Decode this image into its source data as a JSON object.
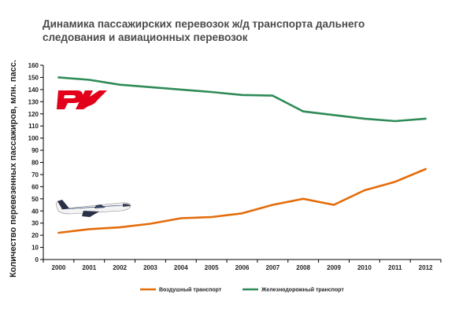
{
  "chart_data": {
    "type": "line",
    "title": "Динамика пассажирских перевозок ж/д транспорта дальнего следования и авиационных перевозок",
    "xlabel": "",
    "ylabel": "Количество перевезенных пассажиров, млн. пасс.",
    "categories": [
      "2000",
      "2001",
      "2002",
      "2003",
      "2004",
      "2005",
      "2006",
      "2007",
      "2008",
      "2009",
      "2010",
      "2011",
      "2012"
    ],
    "ylim": [
      0,
      160
    ],
    "yticks": [
      0,
      10,
      20,
      30,
      40,
      50,
      60,
      70,
      80,
      90,
      100,
      110,
      120,
      130,
      140,
      150,
      160
    ],
    "grid": false,
    "legend_position": "bottom",
    "series": [
      {
        "name": "Воздушный транспорт",
        "color": "#e36c0a",
        "values": [
          22,
          25,
          26.5,
          29.5,
          34,
          35,
          38,
          45,
          50,
          45,
          57,
          64,
          74.5
        ]
      },
      {
        "name": "Железнодорожный транспорт",
        "color": "#2e8b57",
        "values": [
          150,
          148,
          144,
          142,
          140,
          138,
          135.5,
          135,
          122,
          119,
          116,
          114,
          116
        ]
      }
    ]
  },
  "icons": {
    "logo": "rzd-logo",
    "airplane": "airplane-icon",
    "logo_color": "#e2001a"
  }
}
